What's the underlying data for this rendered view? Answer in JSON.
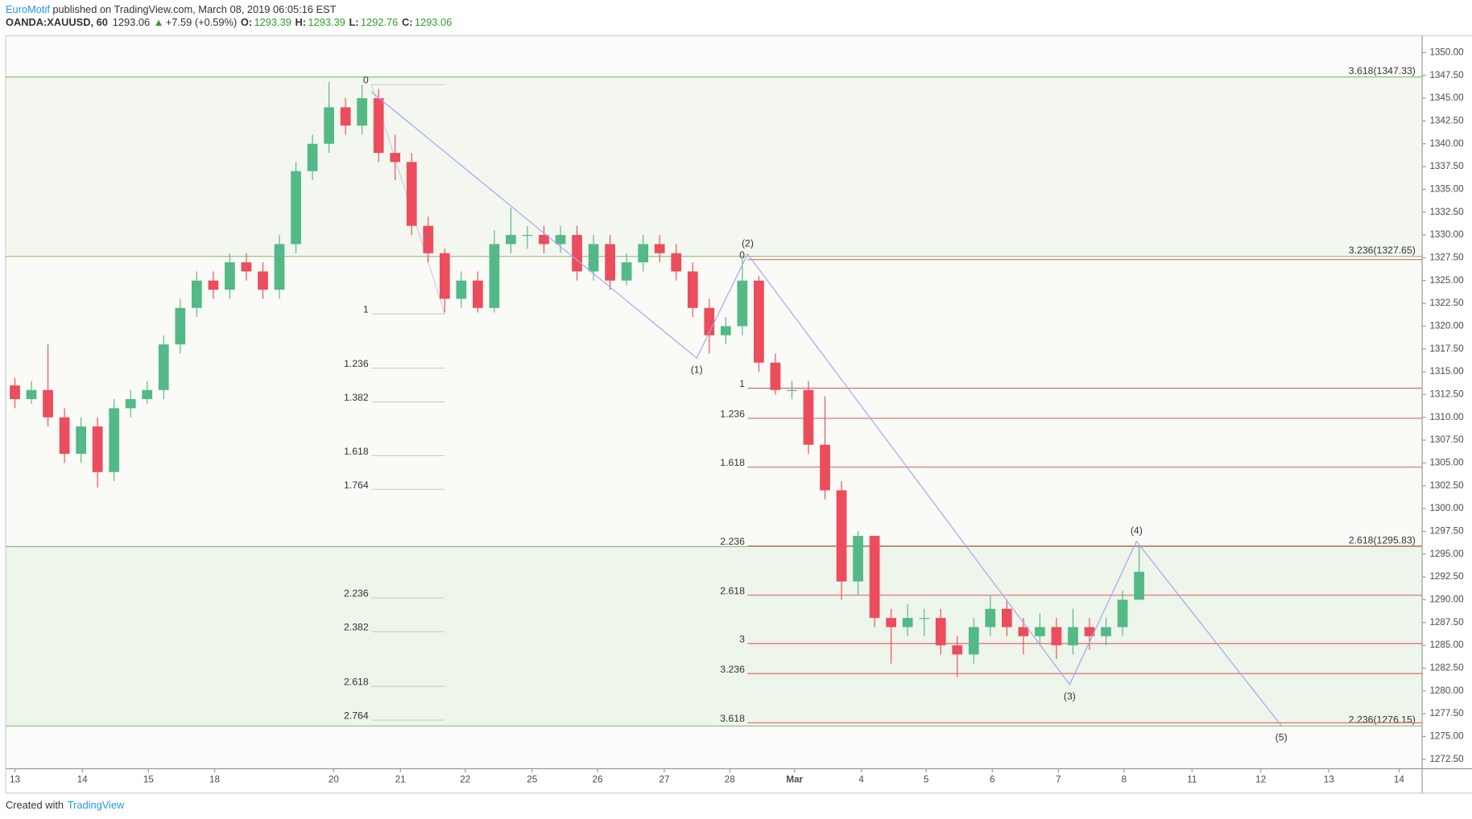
{
  "header": {
    "author": "EuroMotif",
    "published": "published on TradingView.com, March 08, 2019 06:05:16 EST",
    "symbol": "OANDA:XAUUSD, 60",
    "last": 1293.06,
    "arrow": "▲",
    "change": "+7.59 (+0.59%)",
    "o_label": "O:",
    "o": 1293.39,
    "h_label": "H:",
    "h": 1293.39,
    "l_label": "L:",
    "l": 1292.76,
    "c_label": "C:",
    "c": 1293.06
  },
  "footer": {
    "created": "Created with",
    "brand": "TradingView"
  },
  "chart_data": {
    "type": "candlestick",
    "up_color": "#53b987",
    "down_color": "#eb4d5c",
    "grid": false,
    "xlim": [
      -0.14,
      21.28
    ],
    "xticks": [
      {
        "value": 0,
        "label": "13"
      },
      {
        "value": 1.02,
        "label": "14"
      },
      {
        "value": 2.02,
        "label": "15"
      },
      {
        "value": 3.02,
        "label": "18"
      },
      {
        "value": 4.82,
        "label": "20"
      },
      {
        "value": 5.83,
        "label": "21"
      },
      {
        "value": 6.81,
        "label": "22"
      },
      {
        "value": 7.82,
        "label": "25"
      },
      {
        "value": 8.81,
        "label": "26"
      },
      {
        "value": 9.82,
        "label": "27"
      },
      {
        "value": 10.81,
        "label": "28"
      },
      {
        "value": 11.79,
        "label": "Mar"
      },
      {
        "value": 12.8,
        "label": "4"
      },
      {
        "value": 13.78,
        "label": "5"
      },
      {
        "value": 14.78,
        "label": "6"
      },
      {
        "value": 15.78,
        "label": "7"
      },
      {
        "value": 16.77,
        "label": "8"
      },
      {
        "value": 17.8,
        "label": "11"
      },
      {
        "value": 18.84,
        "label": "12"
      },
      {
        "value": 19.87,
        "label": "13"
      },
      {
        "value": 20.93,
        "label": "14"
      }
    ],
    "ylim": [
      1271.47,
      1351.85
    ],
    "yticks": [
      {
        "value": 1272.5,
        "label": "1272.50"
      },
      {
        "value": 1275,
        "label": "1275.00"
      },
      {
        "value": 1277.5,
        "label": "1277.50"
      },
      {
        "value": 1280,
        "label": "1280.00"
      },
      {
        "value": 1282.5,
        "label": "1282.50"
      },
      {
        "value": 1285,
        "label": "1285.00"
      },
      {
        "value": 1287.5,
        "label": "1287.50"
      },
      {
        "value": 1290,
        "label": "1290.00"
      },
      {
        "value": 1292.5,
        "label": "1292.50"
      },
      {
        "value": 1295,
        "label": "1295.00"
      },
      {
        "value": 1297.5,
        "label": "1297.50"
      },
      {
        "value": 1300,
        "label": "1300.00"
      },
      {
        "value": 1302.5,
        "label": "1302.50"
      },
      {
        "value": 1305,
        "label": "1305.00"
      },
      {
        "value": 1307.5,
        "label": "1307.50"
      },
      {
        "value": 1310,
        "label": "1310.00"
      },
      {
        "value": 1312.5,
        "label": "1312.50"
      },
      {
        "value": 1315,
        "label": "1315.00"
      },
      {
        "value": 1317.5,
        "label": "1317.50"
      },
      {
        "value": 1320,
        "label": "1320.00"
      },
      {
        "value": 1322.5,
        "label": "1322.50"
      },
      {
        "value": 1325,
        "label": "1325.00"
      },
      {
        "value": 1327.5,
        "label": "1327.50"
      },
      {
        "value": 1330,
        "label": "1330.00"
      },
      {
        "value": 1332.5,
        "label": "1332.50"
      },
      {
        "value": 1335,
        "label": "1335.00"
      },
      {
        "value": 1337.5,
        "label": "1337.50"
      },
      {
        "value": 1340,
        "label": "1340.00"
      },
      {
        "value": 1342.5,
        "label": "1342.50"
      },
      {
        "value": 1345,
        "label": "1345.00"
      },
      {
        "value": 1347.5,
        "label": "1347.50"
      },
      {
        "value": 1350,
        "label": "1350.00"
      }
    ],
    "candles": {
      "x": [
        0,
        0.25,
        0.5,
        0.75,
        1,
        1.25,
        1.5,
        1.75,
        2,
        2.25,
        2.5,
        2.75,
        3,
        3.25,
        3.5,
        3.75,
        4,
        4.25,
        4.5,
        4.75,
        5,
        5.25,
        5.5,
        5.75,
        6,
        6.25,
        6.5,
        6.75,
        7,
        7.25,
        7.5,
        7.75,
        8,
        8.25,
        8.5,
        8.75,
        9,
        9.25,
        9.5,
        9.75,
        10,
        10.25,
        10.5,
        10.75,
        11,
        11.25,
        11.5,
        11.75,
        12,
        12.25,
        12.5,
        12.75,
        13,
        13.25,
        13.5,
        13.75,
        14,
        14.25,
        14.5,
        14.75,
        15,
        15.25,
        15.5,
        15.75,
        16,
        16.25,
        16.5,
        16.75,
        17
      ],
      "open": [
        1313.5,
        1312,
        1313,
        1310,
        1306,
        1309,
        1304,
        1311,
        1312,
        1313,
        1318,
        1322,
        1325,
        1324,
        1327,
        1326,
        1324,
        1329,
        1337,
        1340,
        1344,
        1342,
        1345,
        1339,
        1338,
        1331,
        1328,
        1323,
        1325,
        1322,
        1329,
        1330,
        1330,
        1329,
        1330,
        1326,
        1329,
        1325,
        1327,
        1329,
        1328,
        1326,
        1322,
        1319,
        1320,
        1325,
        1316,
        1313,
        1313,
        1307,
        1302,
        1292,
        1297,
        1288,
        1287,
        1288,
        1288,
        1285,
        1284,
        1287,
        1289,
        1287,
        1286,
        1287,
        1285,
        1287,
        1286,
        1287,
        1290
      ],
      "high": [
        1314.3,
        1314,
        1318,
        1311,
        1310,
        1310,
        1312,
        1313,
        1314,
        1319,
        1323,
        1326,
        1326,
        1328,
        1328,
        1327,
        1330,
        1338,
        1341,
        1346.8,
        1345,
        1346.5,
        1346,
        1341,
        1339,
        1332,
        1328.5,
        1326,
        1326,
        1330.5,
        1333,
        1331,
        1331,
        1331,
        1331,
        1330,
        1330,
        1328,
        1330,
        1330,
        1329,
        1327,
        1323,
        1321,
        1327.5,
        1325.5,
        1317,
        1314,
        1314,
        1312.3,
        1303,
        1297.5,
        1297,
        1289,
        1289.5,
        1289,
        1289,
        1286,
        1288,
        1290.5,
        1290,
        1288,
        1288.5,
        1288,
        1289,
        1288,
        1288,
        1291,
        1296
      ],
      "low": [
        1311,
        1311.5,
        1309,
        1305,
        1305,
        1302.3,
        1303,
        1310,
        1311.5,
        1312,
        1317,
        1321,
        1323,
        1323,
        1325,
        1323,
        1323,
        1328,
        1336,
        1339,
        1341,
        1341,
        1338,
        1336,
        1330,
        1327,
        1321.5,
        1322,
        1321.5,
        1321.5,
        1328,
        1328.5,
        1328,
        1328,
        1325,
        1325,
        1324,
        1324.5,
        1326,
        1327,
        1325,
        1321,
        1317,
        1318,
        1319,
        1315,
        1312.5,
        1312,
        1306,
        1301,
        1290,
        1290.5,
        1287,
        1283,
        1286,
        1286,
        1284,
        1281.5,
        1283,
        1286,
        1286,
        1284,
        1285,
        1283.5,
        1284,
        1284.5,
        1285,
        1286,
        1292
      ],
      "close": [
        1312,
        1313,
        1310,
        1306,
        1309,
        1304,
        1311,
        1312,
        1313,
        1318,
        1322,
        1325,
        1324,
        1327,
        1326,
        1324,
        1329,
        1337,
        1340,
        1344,
        1342,
        1345,
        1339,
        1338,
        1331,
        1328,
        1323,
        1325,
        1322,
        1329,
        1330,
        1330,
        1329,
        1330,
        1326,
        1329,
        1325,
        1327,
        1329,
        1328,
        1326,
        1322,
        1319,
        1320,
        1325,
        1316,
        1313,
        1313,
        1307,
        1302,
        1292,
        1297,
        1288,
        1287,
        1288,
        1288,
        1285,
        1284,
        1287,
        1289,
        1287,
        1286,
        1287,
        1285,
        1287,
        1286,
        1287,
        1290,
        1293.06
      ]
    },
    "levels": [
      {
        "value": 1347.33,
        "label": "3.618(1347.33)"
      },
      {
        "value": 1327.65,
        "label": "3.236(1327.65)"
      },
      {
        "value": 1295.83,
        "label": "2.618(1295.83)"
      },
      {
        "value": 1276.15,
        "label": "2.236(1276.15)"
      }
    ],
    "level_color": "#8fc07f",
    "level_label_color": "#6aa85a",
    "fib_a": {
      "x": [
        5.39,
        6.5
      ],
      "color": "#c9ccdc",
      "levels": [
        {
          "level": 0,
          "value": 1346.5
        },
        {
          "level": 1,
          "value": 1321.35
        },
        {
          "level": 1.236,
          "value": 1315.4
        },
        {
          "level": 1.382,
          "value": 1311.7
        },
        {
          "level": 1.618,
          "value": 1305.8
        },
        {
          "level": 1.764,
          "value": 1302.1
        },
        {
          "level": 2.236,
          "value": 1290.2
        },
        {
          "level": 2.382,
          "value": 1286.5
        },
        {
          "level": 2.618,
          "value": 1280.5
        },
        {
          "level": 2.764,
          "value": 1276.8
        }
      ]
    },
    "fib_b": {
      "x": [
        11.08,
        21.28
      ],
      "color": "#e06b6b",
      "levels": [
        {
          "level": 0,
          "value": 1327.3
        },
        {
          "level": 1,
          "value": 1313.2
        },
        {
          "level": 1.236,
          "value": 1309.9
        },
        {
          "level": 1.618,
          "value": 1304.55
        },
        {
          "level": 2.236,
          "value": 1295.9
        },
        {
          "level": 2.618,
          "value": 1290.5
        },
        {
          "level": 3,
          "value": 1285.2
        },
        {
          "level": 3.236,
          "value": 1281.9
        },
        {
          "level": 3.618,
          "value": 1276.5
        }
      ]
    },
    "waves": {
      "x": [
        5.39,
        10.31,
        11.08,
        15.95,
        16.96,
        19.15
      ],
      "values": [
        1345.7,
        1316.5,
        1327.9,
        1280.7,
        1296.4,
        1276.2
      ],
      "labels": [
        null,
        "(1)",
        "(2)",
        "(3)",
        "(4)",
        "(5)"
      ],
      "color": "#a4a4f0",
      "label_color": "#2a2a9a"
    }
  }
}
